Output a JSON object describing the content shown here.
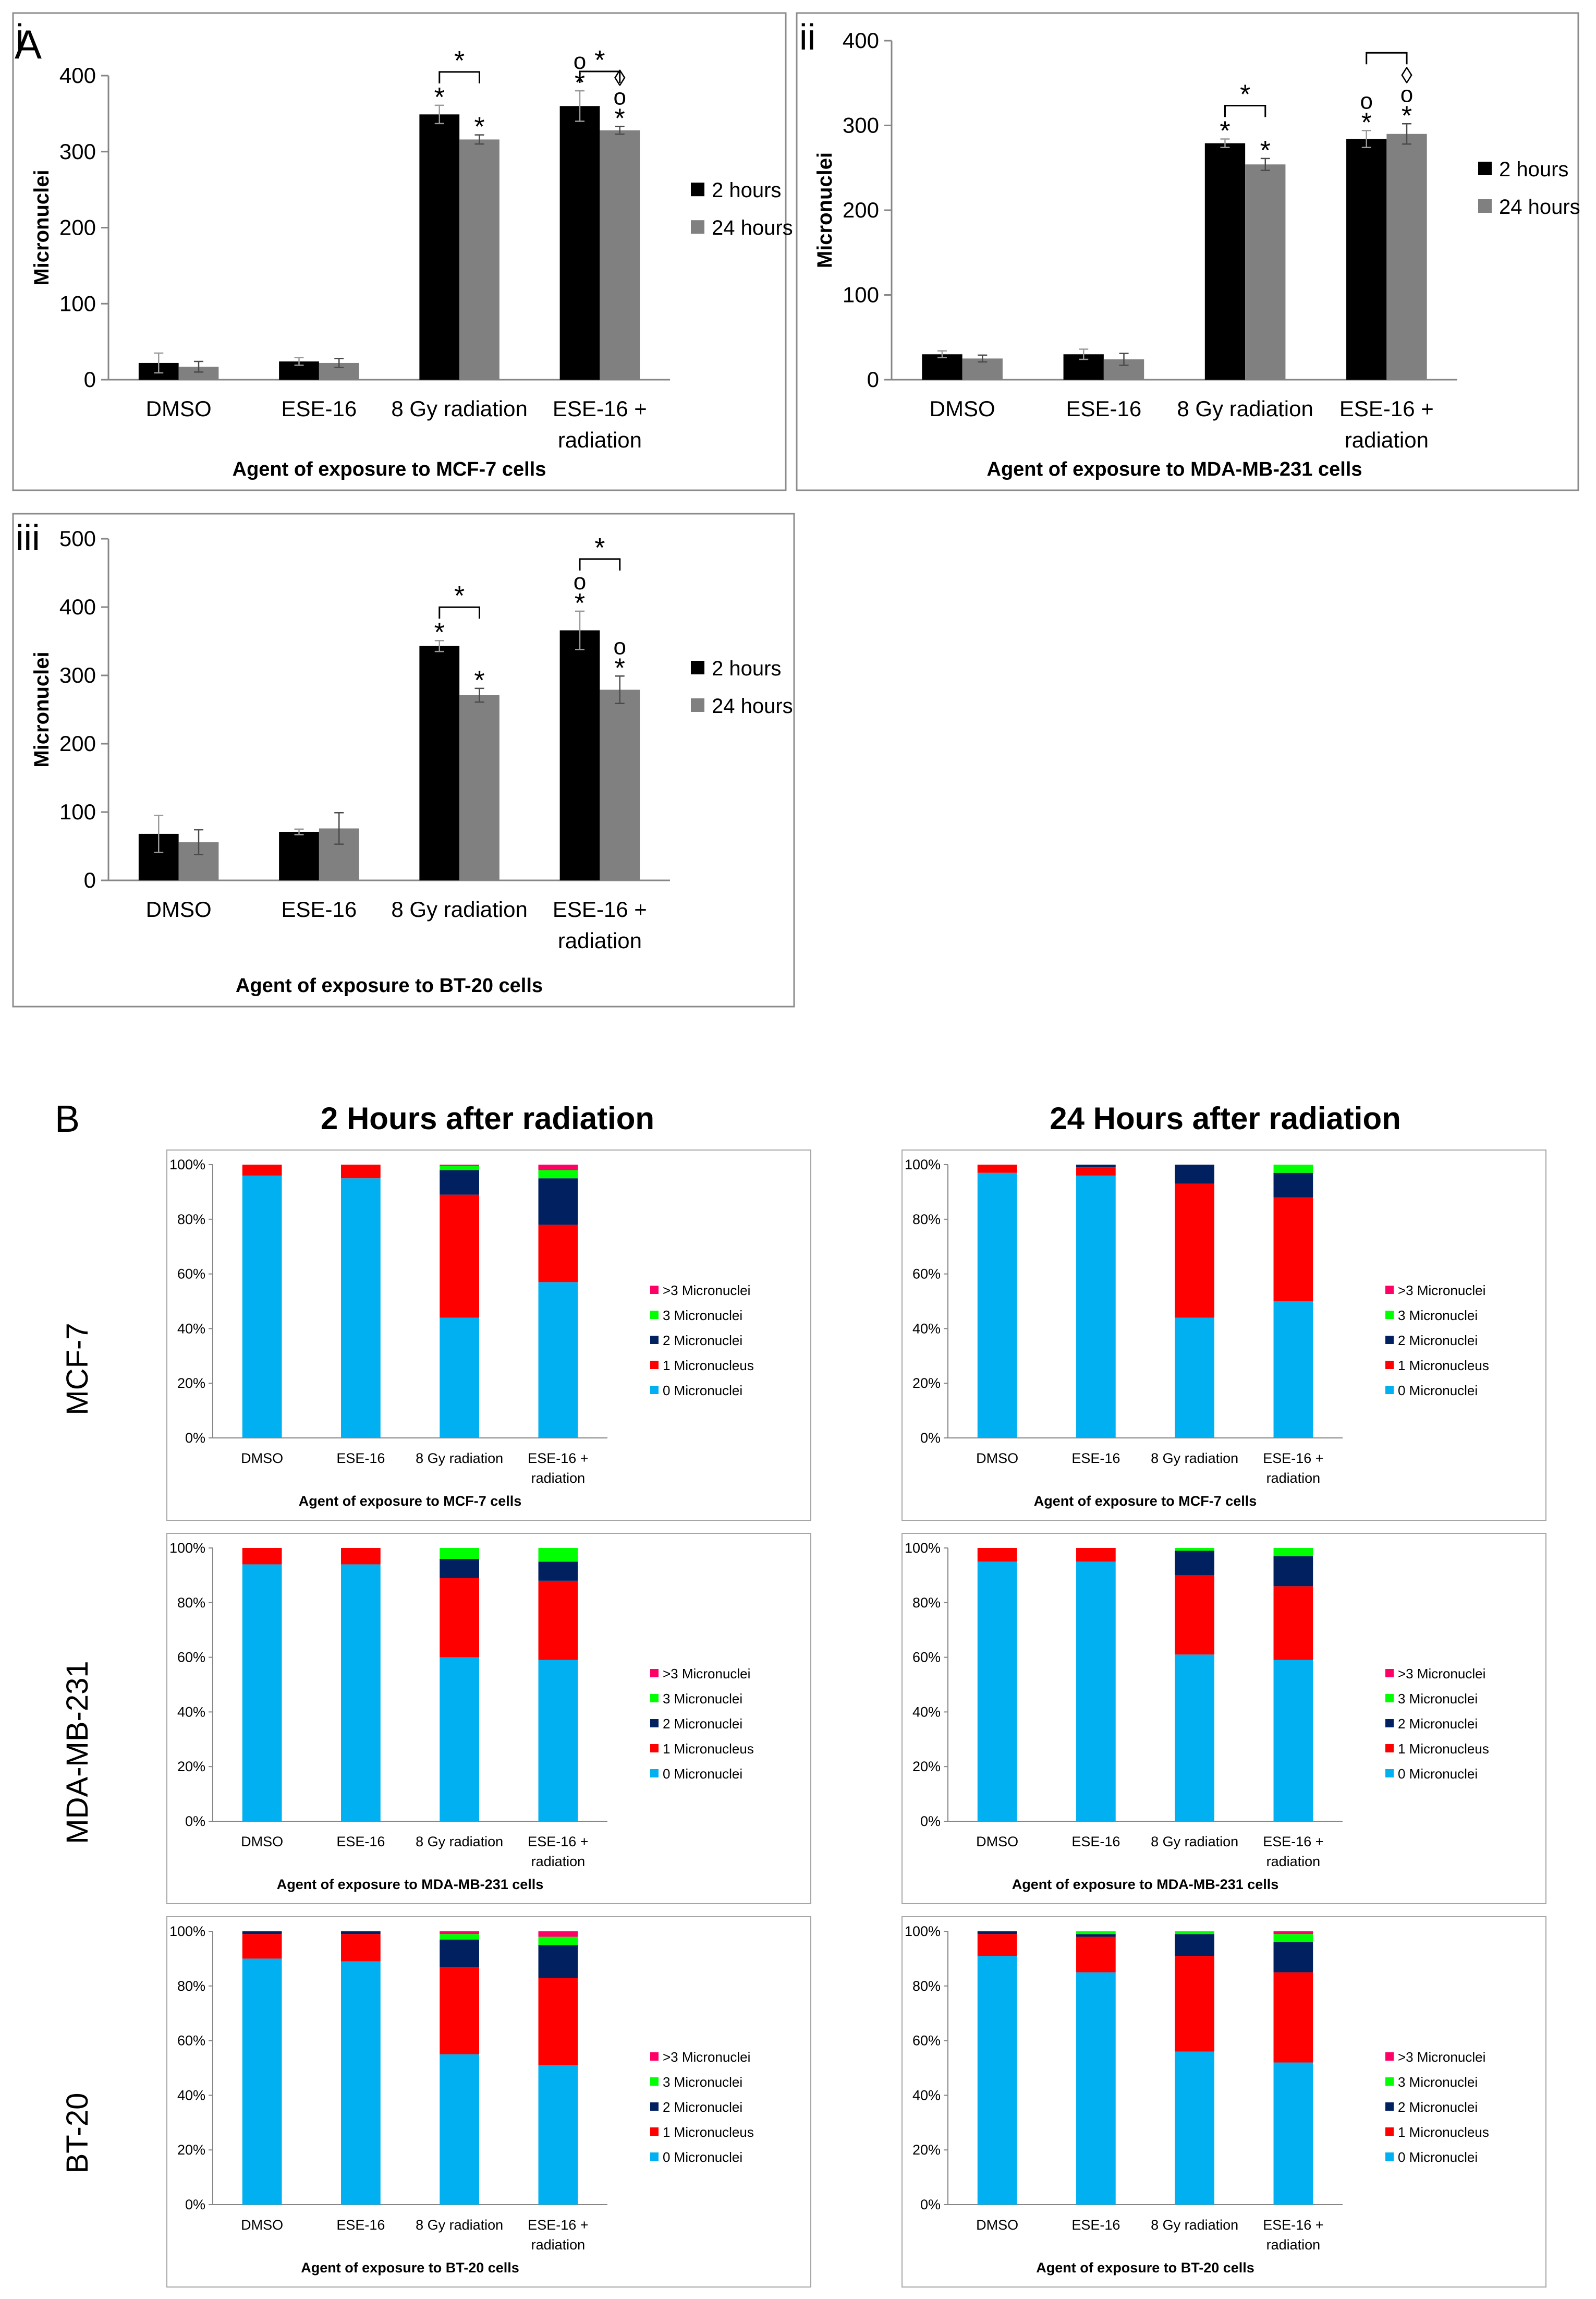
{
  "figure": {
    "panel_letter_a": "A",
    "panel_letter_b": "B",
    "section_b_titles": [
      "2 Hours after radiation",
      "24 Hours after radiation"
    ],
    "row_labels": [
      "MCF-7",
      "MDA-MB-231",
      "BT-20"
    ],
    "colors": {
      "h2": "#000000",
      "h24": "#808080",
      "m0": "#00b0f0",
      "m1": "#ff0000",
      "m2": "#002060",
      "m3": "#00ff00",
      "m3plus": "#ff0066"
    }
  },
  "chart_data": [
    {
      "id": "A-i",
      "panel_label": "i",
      "type": "bar",
      "categories": [
        "DMSO",
        "ESE-16",
        "8 Gy radiation",
        "ESE-16 + radiation"
      ],
      "series": [
        {
          "name": "2 hours",
          "values": [
            22,
            24,
            349,
            360
          ],
          "errors": [
            13,
            5,
            12,
            20
          ]
        },
        {
          "name": "24 hours",
          "values": [
            17,
            22,
            316,
            328
          ],
          "errors": [
            7,
            6,
            6,
            5
          ]
        }
      ],
      "ylabel": "Micronuclei",
      "xlabel": "Agent of exposure to MCF-7 cells",
      "ylim": [
        0,
        400
      ],
      "yticks": [
        0,
        100,
        200,
        300,
        400
      ],
      "annotations": [
        {
          "category": 2,
          "series": 0,
          "symbols": [
            "*"
          ]
        },
        {
          "category": 2,
          "series": 1,
          "symbols": [
            "*"
          ]
        },
        {
          "category": 3,
          "series": 0,
          "symbols": [
            "o",
            "*"
          ]
        },
        {
          "category": 3,
          "series": 1,
          "symbols": [
            "◊",
            "o",
            "*"
          ]
        }
      ],
      "brackets": [
        {
          "category": 2,
          "label": "*"
        },
        {
          "category": 3,
          "label": "*"
        }
      ]
    },
    {
      "id": "A-ii",
      "panel_label": "ii",
      "type": "bar",
      "categories": [
        "DMSO",
        "ESE-16",
        "8 Gy radiation",
        "ESE-16 + radiation"
      ],
      "series": [
        {
          "name": "2 hours",
          "values": [
            30,
            30,
            279,
            284
          ],
          "errors": [
            4,
            6,
            5,
            10
          ]
        },
        {
          "name": "24 hours",
          "values": [
            25,
            24,
            254,
            290
          ],
          "errors": [
            4,
            7,
            7,
            12
          ]
        }
      ],
      "ylabel": "Micronuclei",
      "xlabel": "Agent of exposure to MDA-MB-231 cells",
      "ylim": [
        0,
        400
      ],
      "yticks": [
        0,
        100,
        200,
        300,
        400
      ],
      "annotations": [
        {
          "category": 2,
          "series": 0,
          "symbols": [
            "*"
          ]
        },
        {
          "category": 2,
          "series": 1,
          "symbols": [
            "*"
          ]
        },
        {
          "category": 3,
          "series": 0,
          "symbols": [
            "o",
            "*"
          ]
        },
        {
          "category": 3,
          "series": 1,
          "symbols": [
            "◊",
            "o",
            "*"
          ]
        }
      ],
      "brackets": [
        {
          "category": 2,
          "label": "*"
        },
        {
          "category": 3,
          "label": ""
        }
      ]
    },
    {
      "id": "A-iii",
      "panel_label": "iii",
      "type": "bar",
      "categories": [
        "DMSO",
        "ESE-16",
        "8 Gy radiation",
        "ESE-16 + radiation"
      ],
      "series": [
        {
          "name": "2 hours",
          "values": [
            68,
            71,
            343,
            366
          ],
          "errors": [
            27,
            4,
            8,
            28
          ]
        },
        {
          "name": "24 hours",
          "values": [
            56,
            76,
            271,
            279
          ],
          "errors": [
            18,
            23,
            10,
            20
          ]
        }
      ],
      "ylabel": "Micronuclei",
      "xlabel": "Agent of exposure to BT-20 cells",
      "ylim": [
        0,
        500
      ],
      "yticks": [
        0,
        100,
        200,
        300,
        400,
        500
      ],
      "annotations": [
        {
          "category": 2,
          "series": 0,
          "symbols": [
            "*"
          ]
        },
        {
          "category": 2,
          "series": 1,
          "symbols": [
            "*"
          ]
        },
        {
          "category": 3,
          "series": 0,
          "symbols": [
            "o",
            "*"
          ]
        },
        {
          "category": 3,
          "series": 1,
          "symbols": [
            "o",
            "*"
          ]
        }
      ],
      "brackets": [
        {
          "category": 2,
          "label": "*"
        },
        {
          "category": 3,
          "label": "*"
        }
      ]
    },
    {
      "id": "B-MCF7-2h",
      "type": "stacked_bar_percent",
      "categories": [
        "DMSO",
        "ESE-16",
        "8 Gy radiation",
        "ESE-16 + radiation"
      ],
      "series": [
        {
          "name": "0 Micronuclei",
          "values": [
            96,
            95,
            44,
            57
          ]
        },
        {
          "name": "1 Micronucleus",
          "values": [
            4,
            5,
            45,
            21
          ]
        },
        {
          "name": "2 Micronuclei",
          "values": [
            0,
            0,
            9,
            17
          ]
        },
        {
          "name": "3 Micronuclei",
          "values": [
            0,
            0,
            1.5,
            3
          ]
        },
        {
          "name": ">3 Micronuclei",
          "values": [
            0,
            0,
            0.5,
            2
          ]
        }
      ],
      "xlabel": "Agent of exposure to MCF-7 cells",
      "ylim": [
        0,
        100
      ],
      "yticks": [
        "0%",
        "20%",
        "40%",
        "60%",
        "80%",
        "100%"
      ]
    },
    {
      "id": "B-MCF7-24h",
      "type": "stacked_bar_percent",
      "categories": [
        "DMSO",
        "ESE-16",
        "8 Gy radiation",
        "ESE-16 + radiation"
      ],
      "series": [
        {
          "name": "0 Micronuclei",
          "values": [
            97,
            96,
            44,
            50
          ]
        },
        {
          "name": "1 Micronucleus",
          "values": [
            3,
            3,
            49,
            38
          ]
        },
        {
          "name": "2 Micronuclei",
          "values": [
            0,
            1,
            7,
            9
          ]
        },
        {
          "name": "3 Micronuclei",
          "values": [
            0,
            0,
            0,
            3
          ]
        },
        {
          "name": ">3 Micronuclei",
          "values": [
            0,
            0,
            0,
            0
          ]
        }
      ],
      "xlabel": "Agent of exposure to MCF-7 cells",
      "ylim": [
        0,
        100
      ],
      "yticks": [
        "0%",
        "20%",
        "40%",
        "60%",
        "80%",
        "100%"
      ]
    },
    {
      "id": "B-MDA-2h",
      "type": "stacked_bar_percent",
      "categories": [
        "DMSO",
        "ESE-16",
        "8 Gy radiation",
        "ESE-16 + radiation"
      ],
      "series": [
        {
          "name": "0 Micronuclei",
          "values": [
            94,
            94,
            60,
            59
          ]
        },
        {
          "name": "1 Micronucleus",
          "values": [
            6,
            6,
            29,
            29
          ]
        },
        {
          "name": "2 Micronuclei",
          "values": [
            0,
            0,
            7,
            7
          ]
        },
        {
          "name": "3 Micronuclei",
          "values": [
            0,
            0,
            4,
            5
          ]
        },
        {
          "name": ">3 Micronuclei",
          "values": [
            0,
            0,
            0,
            0
          ]
        }
      ],
      "xlabel": "Agent of exposure to MDA-MB-231 cells",
      "ylim": [
        0,
        100
      ],
      "yticks": [
        "0%",
        "20%",
        "40%",
        "60%",
        "80%",
        "100%"
      ]
    },
    {
      "id": "B-MDA-24h",
      "type": "stacked_bar_percent",
      "categories": [
        "DMSO",
        "ESE-16",
        "8 Gy radiation",
        "ESE-16 + radiation"
      ],
      "series": [
        {
          "name": "0 Micronuclei",
          "values": [
            95,
            95,
            61,
            59
          ]
        },
        {
          "name": "1 Micronucleus",
          "values": [
            5,
            5,
            29,
            27
          ]
        },
        {
          "name": "2 Micronuclei",
          "values": [
            0,
            0,
            9,
            11
          ]
        },
        {
          "name": "3 Micronuclei",
          "values": [
            0,
            0,
            1,
            3
          ]
        },
        {
          "name": ">3 Micronuclei",
          "values": [
            0,
            0,
            0,
            0
          ]
        }
      ],
      "xlabel": "Agent of exposure to MDA-MB-231 cells",
      "ylim": [
        0,
        100
      ],
      "yticks": [
        "0%",
        "20%",
        "40%",
        "60%",
        "80%",
        "100%"
      ]
    },
    {
      "id": "B-BT20-2h",
      "type": "stacked_bar_percent",
      "categories": [
        "DMSO",
        "ESE-16",
        "8 Gy radiation",
        "ESE-16 + radiation"
      ],
      "series": [
        {
          "name": "0 Micronuclei",
          "values": [
            90,
            89,
            55,
            51
          ]
        },
        {
          "name": "1 Micronucleus",
          "values": [
            9,
            10,
            32,
            32
          ]
        },
        {
          "name": "2 Micronuclei",
          "values": [
            1,
            1,
            10,
            12
          ]
        },
        {
          "name": "3 Micronuclei",
          "values": [
            0,
            0,
            2,
            3
          ]
        },
        {
          "name": ">3 Micronuclei",
          "values": [
            0,
            0,
            1,
            2
          ]
        }
      ],
      "xlabel": "Agent of exposure to BT-20 cells",
      "ylim": [
        0,
        100
      ],
      "yticks": [
        "0%",
        "20%",
        "40%",
        "60%",
        "80%",
        "100%"
      ]
    },
    {
      "id": "B-BT20-24h",
      "type": "stacked_bar_percent",
      "categories": [
        "DMSO",
        "ESE-16",
        "8 Gy radiation",
        "ESE-16 + radiation"
      ],
      "series": [
        {
          "name": "0 Micronuclei",
          "values": [
            91,
            85,
            56,
            52
          ]
        },
        {
          "name": "1 Micronucleus",
          "values": [
            8,
            13,
            35,
            33
          ]
        },
        {
          "name": "2 Micronuclei",
          "values": [
            1,
            1,
            8,
            11
          ]
        },
        {
          "name": "3 Micronuclei",
          "values": [
            0,
            1,
            1,
            3
          ]
        },
        {
          "name": ">3 Micronuclei",
          "values": [
            0,
            0,
            0,
            1
          ]
        }
      ],
      "xlabel": "Agent of exposure to BT-20 cells",
      "ylim": [
        0,
        100
      ],
      "yticks": [
        "0%",
        "20%",
        "40%",
        "60%",
        "80%",
        "100%"
      ]
    }
  ]
}
